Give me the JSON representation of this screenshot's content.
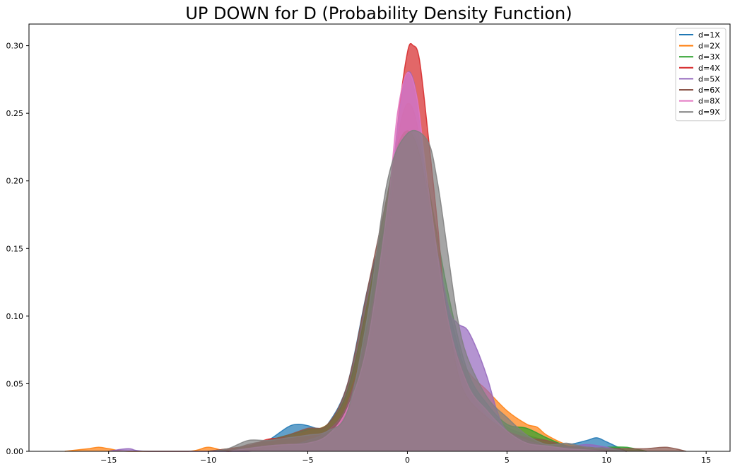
{
  "chart_data": {
    "type": "area",
    "title": "UP DOWN for D (Probability Density Function)",
    "xlabel": "",
    "ylabel": "",
    "xlim": [
      -19.0,
      16.2
    ],
    "ylim": [
      0,
      0.316
    ],
    "xticks": [
      -15,
      -10,
      -5,
      0,
      5,
      10,
      15
    ],
    "xtick_labels": [
      "−15",
      "−10",
      "−5",
      "0",
      "5",
      "10",
      "15"
    ],
    "yticks": [
      0.0,
      0.05,
      0.1,
      0.15,
      0.2,
      0.25,
      0.3
    ],
    "ytick_labels": [
      "0.00",
      "0.05",
      "0.10",
      "0.15",
      "0.20",
      "0.25",
      "0.30"
    ],
    "grid": false,
    "legend_position": "top-right",
    "series": [
      {
        "name": "d=1X",
        "color": "#1f77b4",
        "points": [
          [
            -10,
            0
          ],
          [
            -8,
            0.002
          ],
          [
            -7,
            0.008
          ],
          [
            -6,
            0.018
          ],
          [
            -5.5,
            0.02
          ],
          [
            -5,
            0.019
          ],
          [
            -4.5,
            0.017
          ],
          [
            -4,
            0.02
          ],
          [
            -3,
            0.05
          ],
          [
            -2,
            0.12
          ],
          [
            -1,
            0.175
          ],
          [
            -0.5,
            0.2
          ],
          [
            0,
            0.209
          ],
          [
            0.5,
            0.205
          ],
          [
            1,
            0.18
          ],
          [
            2,
            0.11
          ],
          [
            3,
            0.055
          ],
          [
            4,
            0.03
          ],
          [
            5,
            0.018
          ],
          [
            6,
            0.012
          ],
          [
            7,
            0.008
          ],
          [
            8,
            0.005
          ],
          [
            9,
            0.008
          ],
          [
            9.5,
            0.01
          ],
          [
            10,
            0.007
          ],
          [
            11,
            0
          ]
        ]
      },
      {
        "name": "d=2X",
        "color": "#ff7f0e",
        "points": [
          [
            -17.2,
            0
          ],
          [
            -16,
            0.002
          ],
          [
            -15.5,
            0.003
          ],
          [
            -15,
            0.002
          ],
          [
            -14,
            0
          ],
          [
            -11,
            0
          ],
          [
            -10,
            0.003
          ],
          [
            -9,
            0
          ],
          [
            -8,
            0.003
          ],
          [
            -6,
            0.01
          ],
          [
            -5,
            0.015
          ],
          [
            -4,
            0.02
          ],
          [
            -3,
            0.04
          ],
          [
            -2,
            0.09
          ],
          [
            -1,
            0.17
          ],
          [
            -0.5,
            0.23
          ],
          [
            0,
            0.257
          ],
          [
            0.5,
            0.24
          ],
          [
            1,
            0.18
          ],
          [
            2,
            0.09
          ],
          [
            3,
            0.06
          ],
          [
            4,
            0.045
          ],
          [
            5,
            0.03
          ],
          [
            6,
            0.02
          ],
          [
            6.5,
            0.018
          ],
          [
            7,
            0.012
          ],
          [
            8,
            0.005
          ],
          [
            9,
            0.003
          ],
          [
            10,
            0
          ]
        ]
      },
      {
        "name": "d=3X",
        "color": "#2ca02c",
        "points": [
          [
            -10,
            0
          ],
          [
            -8,
            0.004
          ],
          [
            -7,
            0.008
          ],
          [
            -6,
            0.012
          ],
          [
            -5,
            0.016
          ],
          [
            -4,
            0.02
          ],
          [
            -3,
            0.045
          ],
          [
            -2,
            0.11
          ],
          [
            -1,
            0.19
          ],
          [
            -0.5,
            0.225
          ],
          [
            0,
            0.236
          ],
          [
            0.5,
            0.23
          ],
          [
            1,
            0.2
          ],
          [
            2,
            0.12
          ],
          [
            3,
            0.06
          ],
          [
            4,
            0.035
          ],
          [
            5,
            0.02
          ],
          [
            6,
            0.017
          ],
          [
            7,
            0.01
          ],
          [
            8,
            0.004
          ],
          [
            9,
            0.002
          ],
          [
            10,
            0.003
          ],
          [
            11,
            0.003
          ],
          [
            12,
            0
          ]
        ]
      },
      {
        "name": "d=4X",
        "color": "#d62728",
        "points": [
          [
            -10,
            0
          ],
          [
            -8,
            0.004
          ],
          [
            -7,
            0.009
          ],
          [
            -6,
            0.01
          ],
          [
            -5,
            0.012
          ],
          [
            -4,
            0.015
          ],
          [
            -3,
            0.03
          ],
          [
            -2,
            0.07
          ],
          [
            -1,
            0.15
          ],
          [
            -0.5,
            0.24
          ],
          [
            0,
            0.295
          ],
          [
            0.3,
            0.3
          ],
          [
            0.6,
            0.29
          ],
          [
            1,
            0.24
          ],
          [
            1.5,
            0.17
          ],
          [
            2,
            0.1
          ],
          [
            3,
            0.05
          ],
          [
            4,
            0.025
          ],
          [
            5,
            0.01
          ],
          [
            6,
            0.005
          ],
          [
            7,
            0.003
          ],
          [
            8,
            0.002
          ],
          [
            9,
            0.001
          ],
          [
            10,
            0.001
          ],
          [
            11,
            0
          ]
        ]
      },
      {
        "name": "d=5X",
        "color": "#9467bd",
        "points": [
          [
            -15,
            0
          ],
          [
            -14,
            0.002
          ],
          [
            -13,
            0
          ],
          [
            -8,
            0
          ],
          [
            -6,
            0.004
          ],
          [
            -5,
            0.008
          ],
          [
            -4,
            0.015
          ],
          [
            -3,
            0.035
          ],
          [
            -2,
            0.09
          ],
          [
            -1,
            0.17
          ],
          [
            -0.5,
            0.24
          ],
          [
            0,
            0.28
          ],
          [
            0.5,
            0.26
          ],
          [
            1,
            0.19
          ],
          [
            2,
            0.11
          ],
          [
            2.5,
            0.095
          ],
          [
            3,
            0.09
          ],
          [
            3.5,
            0.075
          ],
          [
            4,
            0.055
          ],
          [
            4.5,
            0.03
          ],
          [
            5,
            0.015
          ],
          [
            6,
            0.008
          ],
          [
            7,
            0.004
          ],
          [
            8,
            0.003
          ],
          [
            9,
            0.005
          ],
          [
            10,
            0.003
          ],
          [
            11,
            0
          ]
        ]
      },
      {
        "name": "d=6X",
        "color": "#8c564b",
        "points": [
          [
            -9,
            0
          ],
          [
            -8,
            0.005
          ],
          [
            -7,
            0.008
          ],
          [
            -6,
            0.012
          ],
          [
            -5,
            0.017
          ],
          [
            -4,
            0.02
          ],
          [
            -3,
            0.05
          ],
          [
            -2,
            0.12
          ],
          [
            -1,
            0.19
          ],
          [
            -0.5,
            0.225
          ],
          [
            0,
            0.237
          ],
          [
            0.5,
            0.225
          ],
          [
            1,
            0.19
          ],
          [
            2,
            0.1
          ],
          [
            2.5,
            0.06
          ],
          [
            3,
            0.04
          ],
          [
            4,
            0.025
          ],
          [
            5,
            0.015
          ],
          [
            6,
            0.01
          ],
          [
            7,
            0.008
          ],
          [
            8,
            0.004
          ],
          [
            9,
            0.003
          ],
          [
            10,
            0.002
          ],
          [
            11,
            0.002
          ],
          [
            12,
            0.002
          ],
          [
            13,
            0.003
          ],
          [
            14,
            0
          ]
        ]
      },
      {
        "name": "d=8X",
        "color": "#e377c2",
        "points": [
          [
            -9,
            0
          ],
          [
            -7,
            0.004
          ],
          [
            -6,
            0.005
          ],
          [
            -5,
            0.006
          ],
          [
            -4,
            0.012
          ],
          [
            -3,
            0.032
          ],
          [
            -2,
            0.08
          ],
          [
            -1,
            0.18
          ],
          [
            -0.5,
            0.25
          ],
          [
            0,
            0.28
          ],
          [
            0.5,
            0.26
          ],
          [
            1,
            0.2
          ],
          [
            2,
            0.1
          ],
          [
            3,
            0.05
          ],
          [
            4,
            0.03
          ],
          [
            5,
            0.015
          ],
          [
            6,
            0.006
          ],
          [
            7,
            0.004
          ],
          [
            8,
            0.002
          ],
          [
            9,
            0.001
          ],
          [
            10,
            0
          ]
        ]
      },
      {
        "name": "d=9X",
        "color": "#7f7f7f",
        "points": [
          [
            -10,
            0
          ],
          [
            -9,
            0.002
          ],
          [
            -8,
            0.008
          ],
          [
            -7,
            0.008
          ],
          [
            -6,
            0.01
          ],
          [
            -5,
            0.012
          ],
          [
            -4,
            0.015
          ],
          [
            -3,
            0.03
          ],
          [
            -2,
            0.1
          ],
          [
            -1,
            0.2
          ],
          [
            0,
            0.235
          ],
          [
            1,
            0.23
          ],
          [
            1.5,
            0.2
          ],
          [
            2,
            0.15
          ],
          [
            2.5,
            0.1
          ],
          [
            3,
            0.07
          ],
          [
            4,
            0.04
          ],
          [
            5,
            0.025
          ],
          [
            6,
            0.012
          ],
          [
            7,
            0.005
          ],
          [
            8,
            0.006
          ],
          [
            9,
            0.003
          ],
          [
            10,
            0.002
          ],
          [
            11,
            0
          ]
        ]
      }
    ]
  }
}
